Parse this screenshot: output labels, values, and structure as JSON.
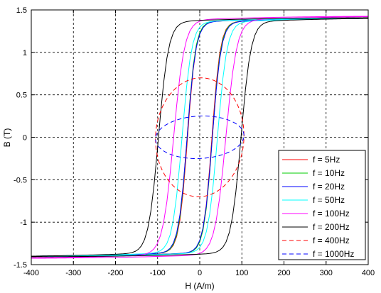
{
  "chart_data": {
    "type": "line",
    "xlabel": "H (A/m)",
    "ylabel": "B (T)",
    "xlim": [
      -400,
      400
    ],
    "ylim": [
      -1.5,
      1.5
    ],
    "xticks": [
      "-400",
      "-300",
      "-200",
      "-100",
      "0",
      "100",
      "200",
      "300",
      "400"
    ],
    "yticks": [
      "-1.5",
      "-1",
      "-0.5",
      "0",
      "0.5",
      "1",
      "1.5"
    ],
    "grid": true,
    "legend_position": "bottom-right",
    "series": [
      {
        "name": "f = 5Hz",
        "color": "#ff0000",
        "dash": "solid",
        "loop": {
          "hc": 29,
          "w": 20,
          "hpeak": 400,
          "bpeak": 1.4
        }
      },
      {
        "name": "f = 10Hz",
        "color": "#00cc00",
        "dash": "solid",
        "loop": {
          "hc": 30,
          "w": 20,
          "hpeak": 400,
          "bpeak": 1.4
        }
      },
      {
        "name": "f = 20Hz",
        "color": "#0000ff",
        "dash": "solid",
        "loop": {
          "hc": 30,
          "w": 21,
          "hpeak": 400,
          "bpeak": 1.4
        }
      },
      {
        "name": "f = 50Hz",
        "color": "#00ffff",
        "dash": "solid",
        "loop": {
          "hc": 42,
          "w": 23,
          "hpeak": 400,
          "bpeak": 1.4
        }
      },
      {
        "name": "f = 100Hz",
        "color": "#ff00ff",
        "dash": "solid",
        "loop": {
          "hc": 62,
          "w": 26,
          "hpeak": 400,
          "bpeak": 1.42
        }
      },
      {
        "name": "f = 200Hz",
        "color": "#000000",
        "dash": "solid",
        "loop": {
          "hc": 98,
          "w": 24,
          "hpeak": 400,
          "bpeak": 1.4
        }
      },
      {
        "name": "f = 400Hz",
        "color": "#ff0000",
        "dash": "dashed",
        "ellipse": {
          "cx": 0,
          "cy": 0,
          "rx": 105,
          "ry": 0.7,
          "tilt": 0.02
        }
      },
      {
        "name": "f = 1000Hz",
        "color": "#0000ff",
        "dash": "dashed",
        "ellipse": {
          "cx": 0,
          "cy": 0,
          "rx": 105,
          "ry": 0.25,
          "tilt": 0.02
        }
      }
    ]
  }
}
